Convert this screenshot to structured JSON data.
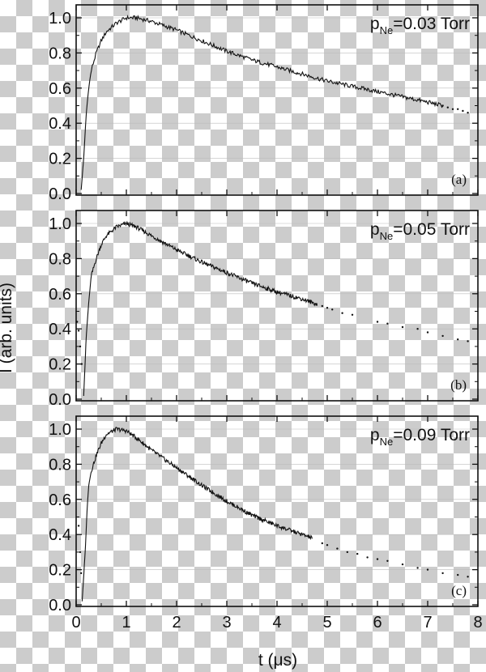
{
  "figure": {
    "ylabel": "I (arb. units)",
    "xlabel": "t (μs)"
  },
  "chart_data": [
    {
      "type": "line",
      "panel_label": "(a)",
      "annotation": {
        "prefix": "p",
        "subscript": "Ne",
        "suffix": "=0.03 Torr"
      },
      "xlim": [
        0,
        8
      ],
      "ylim": [
        0,
        1.05
      ],
      "x_ticks": [
        0,
        1,
        2,
        3,
        4,
        5,
        6,
        7,
        8
      ],
      "y_ticks": [
        "0.0",
        "0.2",
        "0.4",
        "0.6",
        "0.8",
        "1.0"
      ],
      "grid": true,
      "measured": {
        "x": [
          0.1,
          0.15,
          0.2,
          0.25,
          0.3,
          0.4,
          0.5,
          0.6,
          0.8,
          1.0,
          1.2,
          1.5,
          2.0,
          2.5,
          3.0,
          3.5,
          4.0,
          4.5,
          5.0,
          5.5,
          6.0,
          6.5,
          7.0,
          7.3
        ],
        "y": [
          0.02,
          0.2,
          0.45,
          0.6,
          0.7,
          0.8,
          0.87,
          0.92,
          0.97,
          1.0,
          1.0,
          0.98,
          0.93,
          0.87,
          0.81,
          0.76,
          0.72,
          0.68,
          0.64,
          0.61,
          0.58,
          0.55,
          0.52,
          0.5
        ]
      },
      "fit_tail": {
        "x": [
          7.3,
          7.4,
          7.5,
          7.6,
          7.7,
          7.8
        ],
        "y": [
          0.5,
          0.49,
          0.48,
          0.48,
          0.47,
          0.46
        ]
      }
    },
    {
      "type": "line",
      "panel_label": "(b)",
      "annotation": {
        "prefix": "p",
        "subscript": "Ne",
        "suffix": "=0.05 Torr"
      },
      "xlim": [
        0,
        8
      ],
      "ylim": [
        0,
        1.05
      ],
      "x_ticks": [
        0,
        1,
        2,
        3,
        4,
        5,
        6,
        7,
        8
      ],
      "y_ticks": [
        "0.0",
        "0.2",
        "0.4",
        "0.6",
        "0.8",
        "1.0"
      ],
      "grid": true,
      "measured": {
        "x": [
          0.15,
          0.2,
          0.25,
          0.3,
          0.4,
          0.5,
          0.6,
          0.8,
          1.0,
          1.2,
          1.5,
          2.0,
          2.5,
          3.0,
          3.5,
          4.0,
          4.5,
          4.8
        ],
        "y": [
          0.02,
          0.35,
          0.55,
          0.7,
          0.8,
          0.88,
          0.93,
          0.98,
          1.0,
          0.98,
          0.93,
          0.85,
          0.78,
          0.72,
          0.66,
          0.61,
          0.57,
          0.54
        ]
      },
      "fit_tail": {
        "x": [
          0.02,
          0.05,
          0.08,
          0.11,
          4.9,
          5.0,
          5.1,
          5.3,
          5.5,
          6.0,
          6.2,
          6.5,
          6.8,
          7.0,
          7.3,
          7.6,
          7.8
        ],
        "y": [
          0.44,
          0.39,
          0.3,
          0.2,
          0.53,
          0.52,
          0.51,
          0.49,
          0.48,
          0.44,
          0.43,
          0.41,
          0.4,
          0.38,
          0.36,
          0.34,
          0.33
        ]
      }
    },
    {
      "type": "line",
      "panel_label": "(c)",
      "annotation": {
        "prefix": "p",
        "subscript": "Ne",
        "suffix": "=0.09 Torr"
      },
      "xlim": [
        0,
        8
      ],
      "ylim": [
        0,
        1.05
      ],
      "x_ticks": [
        0,
        1,
        2,
        3,
        4,
        5,
        6,
        7,
        8
      ],
      "y_ticks": [
        "0.0",
        "0.2",
        "0.4",
        "0.6",
        "0.8",
        "1.0"
      ],
      "grid": true,
      "measured": {
        "x": [
          0.12,
          0.18,
          0.22,
          0.25,
          0.3,
          0.4,
          0.5,
          0.6,
          0.8,
          1.0,
          1.2,
          1.5,
          2.0,
          2.5,
          3.0,
          3.5,
          4.0,
          4.5,
          4.7
        ],
        "y": [
          0.02,
          0.3,
          0.55,
          0.68,
          0.76,
          0.85,
          0.92,
          0.97,
          1.0,
          0.99,
          0.95,
          0.88,
          0.78,
          0.68,
          0.59,
          0.51,
          0.45,
          0.4,
          0.38
        ]
      },
      "fit_tail": {
        "x": [
          0.05,
          0.08,
          0.1,
          4.9,
          5.0,
          5.2,
          5.4,
          5.6,
          5.8,
          6.0,
          6.2,
          6.5,
          6.8,
          7.0,
          7.3,
          7.6,
          7.8
        ],
        "y": [
          0.45,
          0.3,
          0.18,
          0.35,
          0.34,
          0.32,
          0.3,
          0.29,
          0.27,
          0.26,
          0.25,
          0.23,
          0.21,
          0.2,
          0.18,
          0.17,
          0.16
        ]
      }
    }
  ]
}
